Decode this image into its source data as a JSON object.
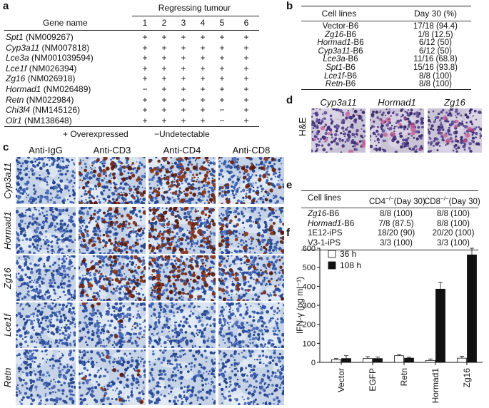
{
  "panel_a": {
    "letter": "a",
    "super_header": "Regressing tumour",
    "col_header": "Gene name",
    "tumour_numbers": [
      "1",
      "2",
      "3",
      "4",
      "5",
      "6"
    ],
    "rows": [
      {
        "gene": "Spt1",
        "acc": " (NM009267)",
        "vals": [
          "+",
          "+",
          "+",
          "+",
          "+",
          "+"
        ]
      },
      {
        "gene": "Cyp3a11",
        "acc": " (NM007818)",
        "vals": [
          "+",
          "+",
          "+",
          "+",
          "+",
          "+"
        ]
      },
      {
        "gene": "Lce3a",
        "acc": " (NM001039594)",
        "vals": [
          "+",
          "+",
          "+",
          "+",
          "+",
          "+"
        ]
      },
      {
        "gene": "Lce1f",
        "acc": " (NM026394)",
        "vals": [
          "+",
          "+",
          "+",
          "+",
          "+",
          "+"
        ]
      },
      {
        "gene": "Zg16",
        "acc": " (NM026918)",
        "vals": [
          "+",
          "+",
          "+",
          "+",
          "+",
          "+"
        ]
      },
      {
        "gene": "Hormad1",
        "acc": " (NM026489)",
        "vals": [
          "−",
          "+",
          "+",
          "+",
          "+",
          "+"
        ]
      },
      {
        "gene": "Retn",
        "acc": " (NM022984)",
        "vals": [
          "+",
          "+",
          "+",
          "+",
          "+",
          "+"
        ]
      },
      {
        "gene": "Chi3l4",
        "acc": " (NM145126)",
        "vals": [
          "+",
          "+",
          "+",
          "+",
          "−",
          "+"
        ]
      },
      {
        "gene": "Olr1",
        "acc": " (NM138648)",
        "vals": [
          "+",
          "+",
          "+",
          "+",
          "−",
          "+"
        ]
      }
    ],
    "legend_plus": "+ Overexpressed",
    "legend_minus": "−Undetectable"
  },
  "panel_b": {
    "letter": "b",
    "col1": "Cell lines",
    "col2": "Day 30 (%)",
    "rows": [
      {
        "gene": "",
        "line": "Vector-B6",
        "val": "17/18 (94.4)"
      },
      {
        "gene": "Zg16",
        "line": "-B6",
        "val": "1/8 (12.5)"
      },
      {
        "gene": "Hormad1",
        "line": "-B6",
        "val": "6/12 (50)"
      },
      {
        "gene": "Cyp3a11",
        "line": "-B6",
        "val": "6/12 (50)"
      },
      {
        "gene": "Lce3a",
        "line": "-B6",
        "val": "11/16 (68.8)"
      },
      {
        "gene": "Spt1",
        "line": "-B6",
        "val": "15/16 (93.8)"
      },
      {
        "gene": "Lce1f",
        "line": "-B6",
        "val": "8/8 (100)"
      },
      {
        "gene": "Retn",
        "line": "-B6",
        "val": "8/8 (100)"
      }
    ]
  },
  "panel_c": {
    "letter": "c",
    "columns": [
      "Anti-IgG",
      "Anti-CD3",
      "Anti-CD4",
      "Anti-CD8"
    ],
    "rows": [
      "Cyp3a11",
      "Hormad1",
      "Zg16",
      "Lce1f",
      "Retn"
    ]
  },
  "panel_d": {
    "letter": "d",
    "side_label": "H&E",
    "columns": [
      "Cyp3a11",
      "Hormad1",
      "Zg16"
    ]
  },
  "panel_e": {
    "letter": "e",
    "col1": "Cell lines",
    "col2_pre": "CD4",
    "col2_sup": "−/−",
    "col2_post": "(Day 30)",
    "col3_pre": "CD8",
    "col3_sup": "−/−",
    "col3_post": "(Day 30)",
    "rows": [
      {
        "gene": "Zg16",
        "line": "-B6",
        "v1": "8/8 (100)",
        "v2": "8/8 (100)"
      },
      {
        "gene": "Hormad1",
        "line": "-B6",
        "v1": "7/8 (87.5)",
        "v2": "8/8 (100)"
      },
      {
        "gene": "",
        "line": "1E12-iPS",
        "v1": "18/20 (90)",
        "v2": "20/20 (100)"
      },
      {
        "gene": "",
        "line": "V3-1-iPS",
        "v1": "3/3 (100)",
        "v2": "3/3 (100)"
      }
    ]
  },
  "panel_f": {
    "letter": "f",
    "chart_data": {
      "type": "bar",
      "categories": [
        "Vector",
        "EGFP",
        "Retn",
        "Hormad1",
        "Zg16"
      ],
      "series": [
        {
          "name": "36 h",
          "values": [
            14,
            20,
            35,
            10,
            22
          ],
          "errors": [
            6,
            10,
            6,
            8,
            10
          ],
          "color": "#ffffff"
        },
        {
          "name": "108 h",
          "values": [
            20,
            20,
            22,
            385,
            565
          ],
          "errors": [
            15,
            8,
            5,
            35,
            35
          ],
          "color": "#111111"
        }
      ],
      "title": "",
      "xlabel": "",
      "ylabel": "IFN-γ (pg ml⁻¹)",
      "ylim": [
        0,
        600
      ],
      "yticks": [
        0,
        100,
        200,
        300,
        400,
        500,
        600
      ],
      "grid": false,
      "legend": "top-left"
    }
  }
}
